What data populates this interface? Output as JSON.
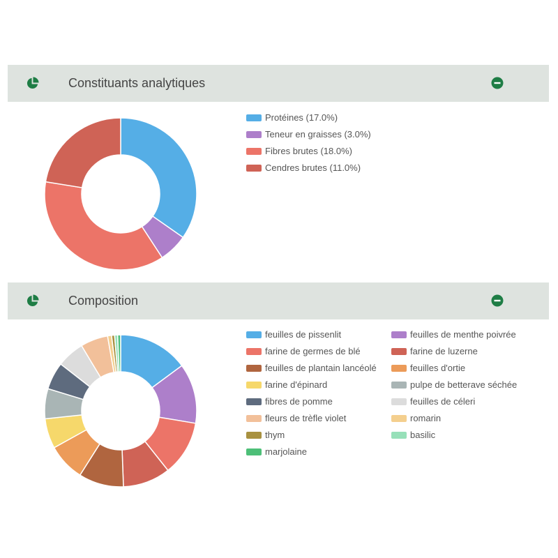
{
  "panels": [
    {
      "title": "Constituants analytiques",
      "icon": "pie-chart-icon",
      "toggle_icon": "collapse-minus-icon"
    },
    {
      "title": "Composition",
      "icon": "pie-chart-icon",
      "toggle_icon": "collapse-minus-icon"
    }
  ],
  "colors": {
    "header_bg": "#dee3df",
    "icon_green": "#1e7d45"
  },
  "chart_data": [
    {
      "type": "pie",
      "donut": true,
      "title": "Constituants analytiques",
      "legend_position": "right",
      "slices": [
        {
          "label": "Protéines (17.0%)",
          "value": 17.0,
          "color": "#55aee6"
        },
        {
          "label": "Teneur en graisses (3.0%)",
          "value": 3.0,
          "color": "#ad7fca"
        },
        {
          "label": "Fibres brutes (18.0%)",
          "value": 18.0,
          "color": "#ec7468"
        },
        {
          "label": "Cendres brutes (11.0%)",
          "value": 11.0,
          "color": "#cf6356"
        }
      ]
    },
    {
      "type": "pie",
      "donut": true,
      "title": "Composition",
      "legend_position": "right",
      "slices": [
        {
          "label": "feuilles de pissenlit",
          "value": 14.0,
          "color": "#55aee6"
        },
        {
          "label": "feuilles de menthe poivrée",
          "value": 12.0,
          "color": "#ad7fca"
        },
        {
          "label": "farine de germes de blé",
          "value": 11.0,
          "color": "#ec7468"
        },
        {
          "label": "farine de luzerne",
          "value": 9.5,
          "color": "#cf6356"
        },
        {
          "label": "feuilles de plantain lancéolé",
          "value": 9.0,
          "color": "#b0653f"
        },
        {
          "label": "feuilles d'ortie",
          "value": 7.5,
          "color": "#ec9b59"
        },
        {
          "label": "farine d'épinard",
          "value": 6.0,
          "color": "#f6d86b"
        },
        {
          "label": "pulpe de betterave séchée",
          "value": 6.0,
          "color": "#a9b5b5"
        },
        {
          "label": "fibres de pomme",
          "value": 5.5,
          "color": "#5e6b7e"
        },
        {
          "label": "feuilles de céleri",
          "value": 5.5,
          "color": "#dcdcdc"
        },
        {
          "label": "fleurs de trèfle violet",
          "value": 5.5,
          "color": "#f2c09a"
        },
        {
          "label": "romarin",
          "value": 0.8,
          "color": "#f4cf8e"
        },
        {
          "label": "thym",
          "value": 0.6,
          "color": "#a89140"
        },
        {
          "label": "basilic",
          "value": 0.6,
          "color": "#97e0b9"
        },
        {
          "label": "marjolaine",
          "value": 0.6,
          "color": "#4dbf78"
        }
      ]
    }
  ]
}
